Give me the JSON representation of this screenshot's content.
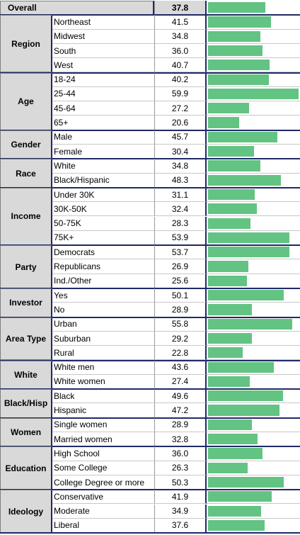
{
  "chart_data": {
    "type": "table",
    "overall": {
      "label": "Overall",
      "value": 37.8
    },
    "bar_color": "#63c383",
    "header_bg": "#d9d9d9",
    "border_color": "#1f2a66",
    "groups": [
      {
        "name": "Region",
        "rows": [
          {
            "label": "Northeast",
            "value": 41.5
          },
          {
            "label": "Midwest",
            "value": 34.8
          },
          {
            "label": "South",
            "value": 36.0
          },
          {
            "label": "West",
            "value": 40.7
          }
        ]
      },
      {
        "name": "Age",
        "rows": [
          {
            "label": "18-24",
            "value": 40.2
          },
          {
            "label": "25-44",
            "value": 59.9
          },
          {
            "label": "45-64",
            "value": 27.2
          },
          {
            "label": "65+",
            "value": 20.6
          }
        ]
      },
      {
        "name": "Gender",
        "rows": [
          {
            "label": "Male",
            "value": 45.7
          },
          {
            "label": "Female",
            "value": 30.4
          }
        ]
      },
      {
        "name": "Race",
        "rows": [
          {
            "label": "White",
            "value": 34.8
          },
          {
            "label": "Black/Hispanic",
            "value": 48.3
          }
        ]
      },
      {
        "name": "Income",
        "rows": [
          {
            "label": "Under 30K",
            "value": 31.1
          },
          {
            "label": "30K-50K",
            "value": 32.4
          },
          {
            "label": "50-75K",
            "value": 28.3
          },
          {
            "label": "75K+",
            "value": 53.9
          }
        ]
      },
      {
        "name": "Party",
        "rows": [
          {
            "label": "Democrats",
            "value": 53.7
          },
          {
            "label": "Republicans",
            "value": 26.9
          },
          {
            "label": "Ind./Other",
            "value": 25.6
          }
        ]
      },
      {
        "name": "Investor",
        "rows": [
          {
            "label": "Yes",
            "value": 50.1
          },
          {
            "label": "No",
            "value": 28.9
          }
        ]
      },
      {
        "name": "Area Type",
        "rows": [
          {
            "label": "Urban",
            "value": 55.8
          },
          {
            "label": "Suburban",
            "value": 29.2
          },
          {
            "label": "Rural",
            "value": 22.8
          }
        ]
      },
      {
        "name": "White",
        "rows": [
          {
            "label": "White men",
            "value": 43.6
          },
          {
            "label": "White women",
            "value": 27.4
          }
        ]
      },
      {
        "name": "Black/Hisp",
        "rows": [
          {
            "label": "Black",
            "value": 49.6
          },
          {
            "label": "Hispanic",
            "value": 47.2
          }
        ]
      },
      {
        "name": "Women",
        "rows": [
          {
            "label": "Single women",
            "value": 28.9
          },
          {
            "label": "Married women",
            "value": 32.8
          }
        ]
      },
      {
        "name": "Education",
        "rows": [
          {
            "label": "High School",
            "value": 36.0
          },
          {
            "label": "Some College",
            "value": 26.3
          },
          {
            "label": "College Degree or more",
            "value": 50.3
          }
        ]
      },
      {
        "name": "Ideology",
        "rows": [
          {
            "label": "Conservative",
            "value": 41.9
          },
          {
            "label": "Moderate",
            "value": 34.9
          },
          {
            "label": "Liberal",
            "value": 37.6
          }
        ]
      }
    ]
  }
}
